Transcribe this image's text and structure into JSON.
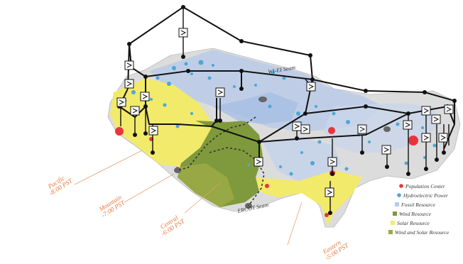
{
  "colors": {
    "solar": "#f2ea6b",
    "wind": "#7f9a3c",
    "fossil": "#b8cbe8",
    "hydro": "#4fa6d6",
    "population": "#e8343c",
    "grid": "#111111",
    "timezone": "#e8753a",
    "land": "#dcdcdc"
  },
  "timezones": [
    {
      "name": "Pacific",
      "utc": "-8:00 PST"
    },
    {
      "name": "Mountain",
      "utc": "-7:00 PST"
    },
    {
      "name": "Central",
      "utc": "-6:00 PST"
    },
    {
      "name": "Eastern",
      "utc": "-5:00 PST"
    }
  ],
  "seams": {
    "wi_ei": "WI-EI Seam",
    "ercot": "ERCOT Seam"
  },
  "legend": [
    {
      "label": "Population Center",
      "color": "#e8343c",
      "icon": "population-center-dot"
    },
    {
      "label": "Hydroelectric Power",
      "color": "#4fa6d6",
      "icon": "hydro-dot"
    },
    {
      "label": "Fossil Resource",
      "color": "#b8cbe8",
      "icon": "fossil-square"
    },
    {
      "label": "Wind Resource",
      "color": "#7f9a3c",
      "icon": "wind-square"
    },
    {
      "label": "Solar Resource",
      "color": "#f2ea6b",
      "icon": "solar-square"
    },
    {
      "label": "Wind and Solar Resource",
      "color": "#9aaa45",
      "icon": "wind-solar-square"
    }
  ]
}
